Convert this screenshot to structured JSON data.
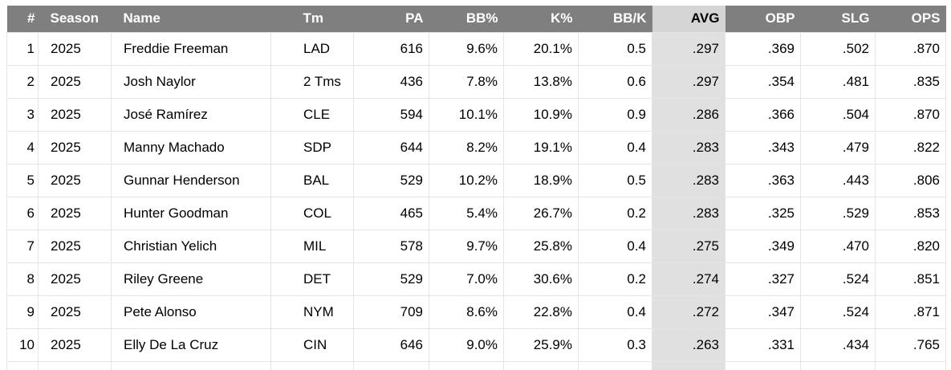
{
  "table": {
    "description": "Batting stats leaderboard, 2025 season, sorted by AVG",
    "sorted_column": "AVG",
    "columns": [
      {
        "key": "rank",
        "label": "#",
        "align": "right"
      },
      {
        "key": "season",
        "label": "Season",
        "align": "left"
      },
      {
        "key": "name",
        "label": "Name",
        "align": "left"
      },
      {
        "key": "team",
        "label": "Tm",
        "align": "left"
      },
      {
        "key": "pa",
        "label": "PA",
        "align": "right"
      },
      {
        "key": "bb_pct",
        "label": "BB%",
        "align": "right"
      },
      {
        "key": "k_pct",
        "label": "K%",
        "align": "right"
      },
      {
        "key": "bb_per_k",
        "label": "BB/K",
        "align": "right"
      },
      {
        "key": "avg",
        "label": "AVG",
        "align": "right",
        "highlighted": true
      },
      {
        "key": "obp",
        "label": "OBP",
        "align": "right"
      },
      {
        "key": "slg",
        "label": "SLG",
        "align": "right"
      },
      {
        "key": "ops",
        "label": "OPS",
        "align": "right"
      }
    ],
    "rows": [
      [
        "1",
        "2025",
        "Freddie Freeman",
        "LAD",
        "616",
        "9.6%",
        "20.1%",
        "0.5",
        ".297",
        ".369",
        ".502",
        ".870"
      ],
      [
        "2",
        "2025",
        "Josh Naylor",
        "2 Tms",
        "436",
        "7.8%",
        "13.8%",
        "0.6",
        ".297",
        ".354",
        ".481",
        ".835"
      ],
      [
        "3",
        "2025",
        "José Ramírez",
        "CLE",
        "594",
        "10.1%",
        "10.9%",
        "0.9",
        ".286",
        ".366",
        ".504",
        ".870"
      ],
      [
        "4",
        "2025",
        "Manny Machado",
        "SDP",
        "644",
        "8.2%",
        "19.1%",
        "0.4",
        ".283",
        ".343",
        ".479",
        ".822"
      ],
      [
        "5",
        "2025",
        "Gunnar Henderson",
        "BAL",
        "529",
        "10.2%",
        "18.9%",
        "0.5",
        ".283",
        ".363",
        ".443",
        ".806"
      ],
      [
        "6",
        "2025",
        "Hunter Goodman",
        "COL",
        "465",
        "5.4%",
        "26.7%",
        "0.2",
        ".283",
        ".325",
        ".529",
        ".853"
      ],
      [
        "7",
        "2025",
        "Christian Yelich",
        "MIL",
        "578",
        "9.7%",
        "25.8%",
        "0.4",
        ".275",
        ".349",
        ".470",
        ".820"
      ],
      [
        "8",
        "2025",
        "Riley Greene",
        "DET",
        "529",
        "7.0%",
        "30.6%",
        "0.2",
        ".274",
        ".327",
        ".524",
        ".851"
      ],
      [
        "9",
        "2025",
        "Pete Alonso",
        "NYM",
        "709",
        "8.6%",
        "22.8%",
        "0.4",
        ".272",
        ".347",
        ".524",
        ".871"
      ],
      [
        "10",
        "2025",
        "Elly De La Cruz",
        "CIN",
        "646",
        "9.0%",
        "25.9%",
        "0.3",
        ".263",
        ".331",
        ".434",
        ".765"
      ]
    ],
    "colors": {
      "header_bg": "#7f7f7f",
      "header_text": "#ffffff",
      "highlight_header_bg": "#d5d5d5",
      "highlight_cell_bg": "#e0e0e0",
      "row_bg": "#ffffff",
      "grid_border": "#e4e4e4",
      "body_text": "#000000"
    }
  }
}
